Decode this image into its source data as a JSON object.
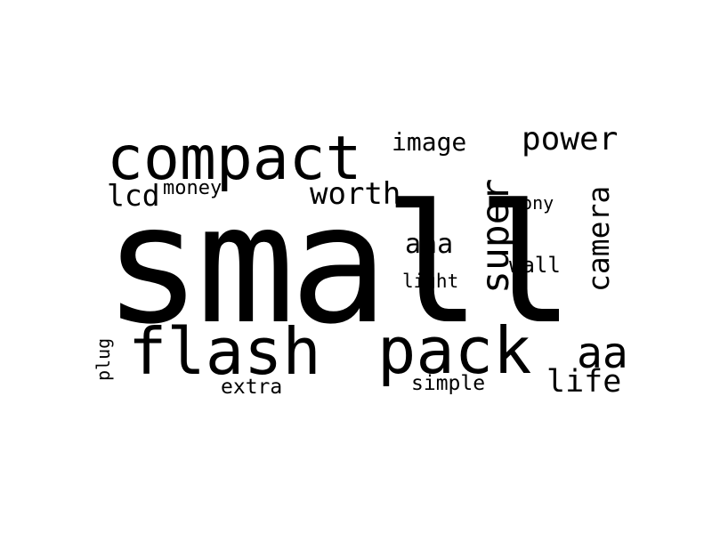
{
  "words": {
    "small": "small",
    "compact": "compact",
    "flash": "flash",
    "pack": "pack",
    "power": "power",
    "image": "image",
    "worth": "worth",
    "lcd": "lcd",
    "money": "money",
    "super": "super",
    "camera": "camera",
    "sony": "sony",
    "aaa": "aaa",
    "wall": "wall",
    "light": "light",
    "aa": "aa",
    "life": "life",
    "plug": "plug",
    "extra": "extra",
    "simple": "simple"
  },
  "colors": {
    "text": "#000000",
    "background": "#ffffff"
  }
}
